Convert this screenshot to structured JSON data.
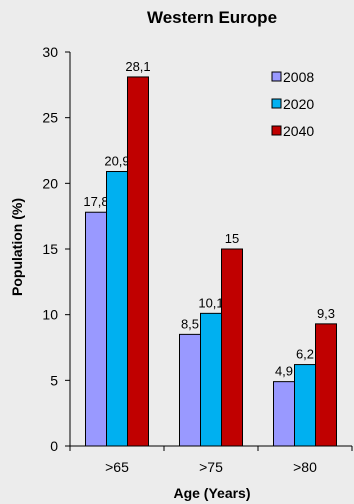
{
  "chart_data": {
    "type": "bar",
    "title": "Western Europe",
    "xlabel": "Age (Years)",
    "ylabel": "Population (%)",
    "categories": [
      ">65",
      ">75",
      ">80"
    ],
    "series": [
      {
        "name": "2008",
        "values": [
          17.8,
          8.5,
          4.9
        ],
        "labels": [
          "17,8",
          "8,5",
          "4,9"
        ],
        "color": "#9999ff"
      },
      {
        "name": "2020",
        "values": [
          20.9,
          10.1,
          6.2
        ],
        "labels": [
          "20,9",
          "10,1",
          "6,2"
        ],
        "color": "#00b0f0"
      },
      {
        "name": "2040",
        "values": [
          28.1,
          15,
          9.3
        ],
        "labels": [
          "28,1",
          "15",
          "9,3"
        ],
        "color": "#c00000"
      }
    ],
    "ylim": [
      0,
      30
    ],
    "yticks": [
      0,
      5,
      10,
      15,
      20,
      25,
      30
    ],
    "grid": false,
    "legend_position": "top-right",
    "background": "#ececec"
  }
}
